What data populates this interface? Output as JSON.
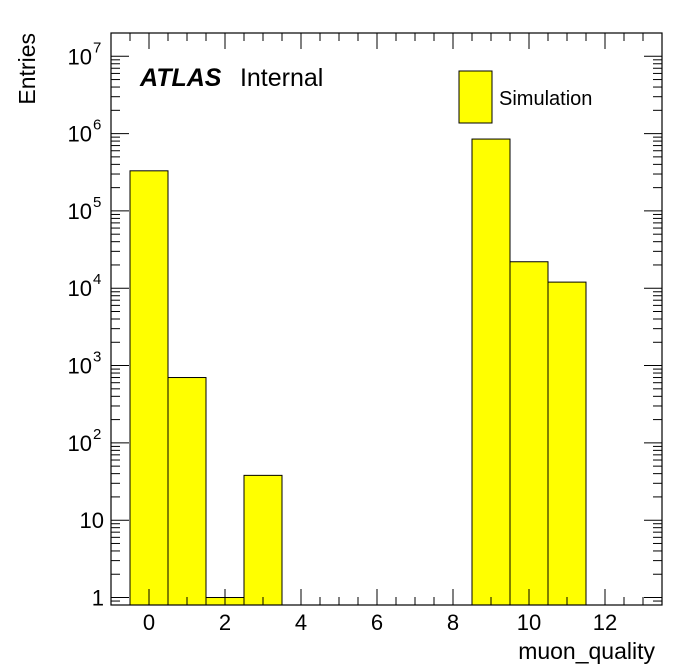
{
  "chart_data": {
    "type": "bar",
    "style": "histogram",
    "xlabel": "muon_quality",
    "ylabel": "Entries",
    "x_range": [
      -1,
      13.5
    ],
    "ylim": [
      0.8,
      20000000
    ],
    "y_scale": "log",
    "x_ticks": [
      0,
      2,
      4,
      6,
      8,
      10,
      12
    ],
    "y_ticks": [
      {
        "value": 1,
        "base": "1",
        "exp": ""
      },
      {
        "value": 10,
        "base": "10",
        "exp": ""
      },
      {
        "value": 100,
        "base": "10",
        "exp": "2"
      },
      {
        "value": 1000,
        "base": "10",
        "exp": "3"
      },
      {
        "value": 10000,
        "base": "10",
        "exp": "4"
      },
      {
        "value": 100000,
        "base": "10",
        "exp": "5"
      },
      {
        "value": 1000000,
        "base": "10",
        "exp": "6"
      },
      {
        "value": 10000000,
        "base": "10",
        "exp": "7"
      }
    ],
    "bin_width": 1,
    "bins": [
      {
        "x": 0,
        "value": 330000
      },
      {
        "x": 1,
        "value": 700
      },
      {
        "x": 2,
        "value": 1
      },
      {
        "x": 3,
        "value": 38
      },
      {
        "x": 9,
        "value": 850000
      },
      {
        "x": 10,
        "value": 22000
      },
      {
        "x": 11,
        "value": 12000
      }
    ],
    "fill_color": "#ffff00",
    "line_color": "#000000",
    "legend": {
      "entry": "Simulation",
      "placement": "top-right"
    },
    "label": {
      "bold": "ATLAS",
      "text": "Internal"
    }
  }
}
